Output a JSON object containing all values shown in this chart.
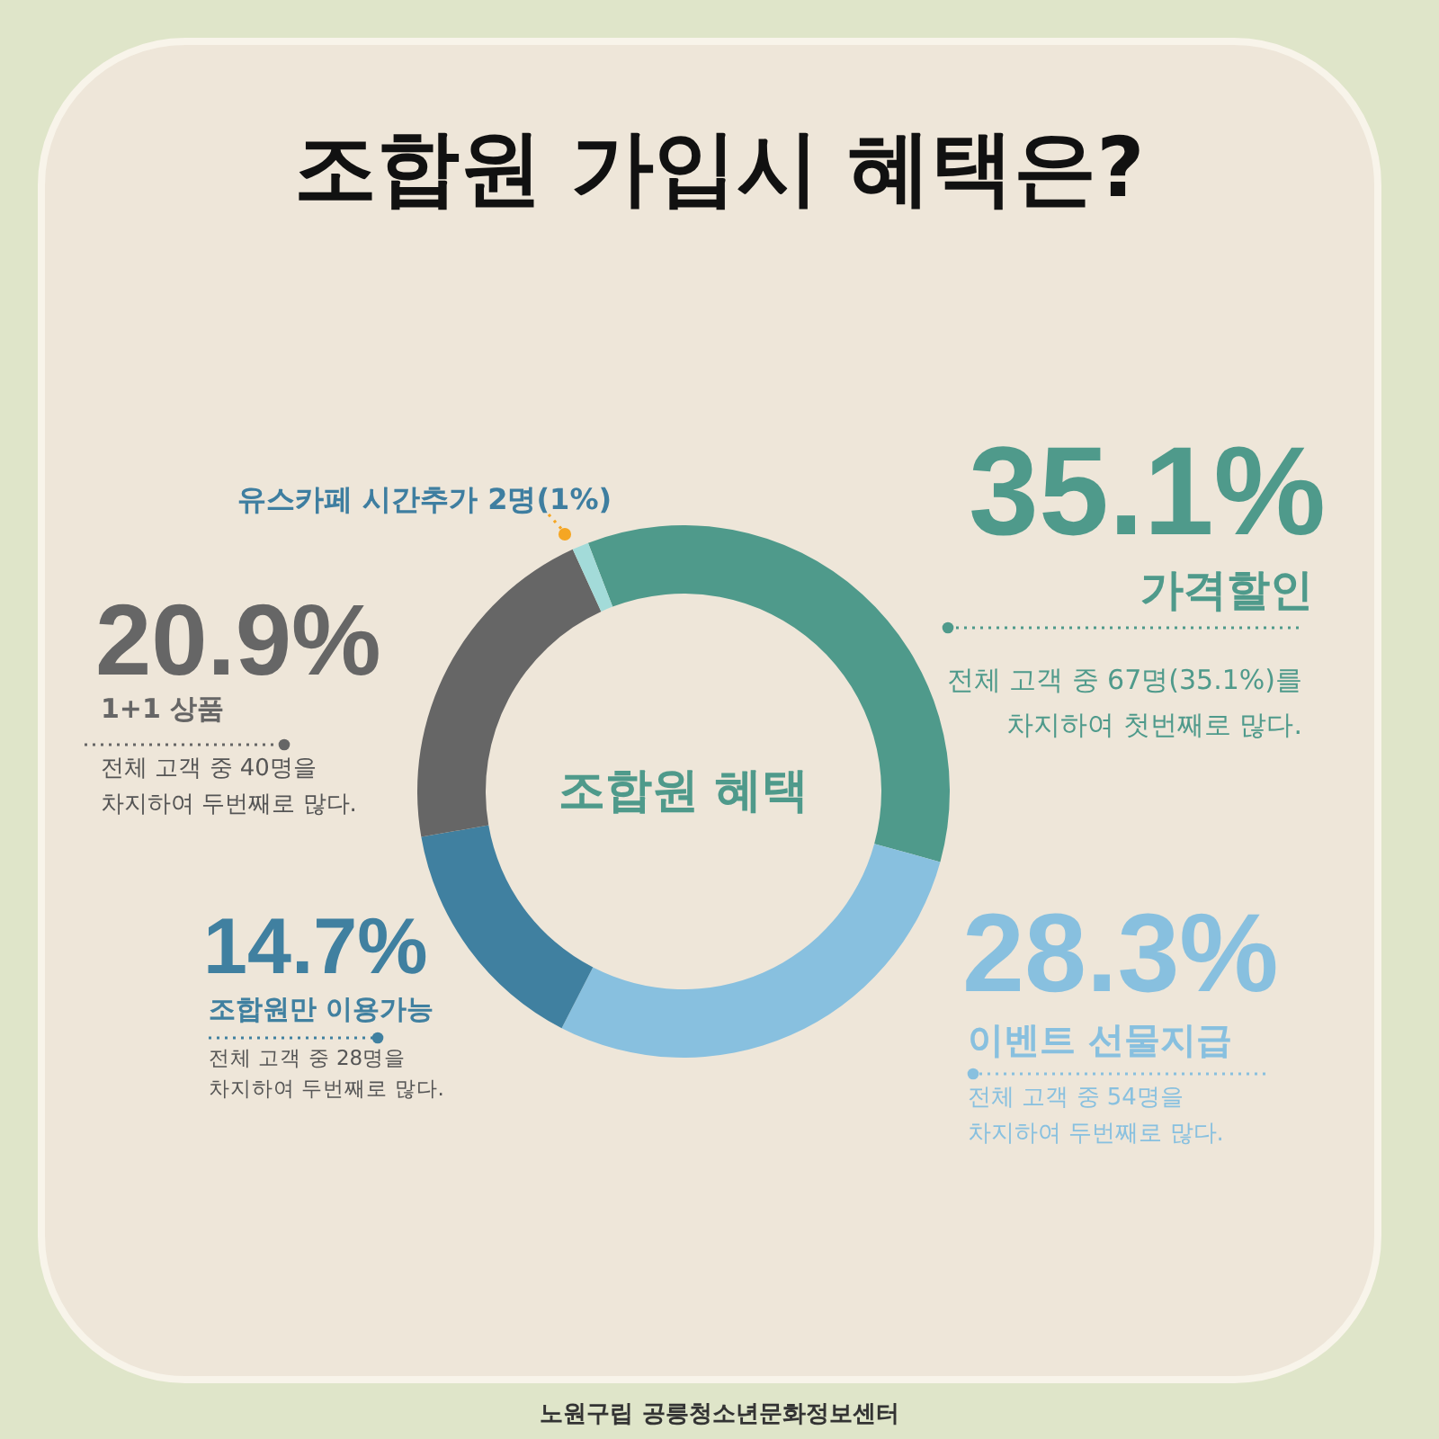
{
  "chart_data": {
    "type": "donut",
    "title": "조합원 가입시 혜택은?",
    "categories": [
      "가격할인",
      "이벤트 선물지급",
      "조합원만 이용가능",
      "1+1 상품",
      "유스카페 시간추가"
    ],
    "values": [
      35.1,
      28.3,
      14.7,
      20.9,
      1
    ],
    "colors": [
      "#4f9a8b",
      "#88c0df",
      "#4080a0",
      "#666666",
      "#a3dbd9"
    ],
    "value_labels": [
      "35.1%",
      "28.3%",
      "14.7%",
      "20.9%",
      "2명(1%)"
    ],
    "annotations": [
      "조합원 혜택",
      "전체 고객 중 67명(35.1%)를\n차지하여 첫번째로 많다.",
      "전체 고객 중 54명을\n차지하여 두번째로 많다.",
      "전체 고객 중 28명을\n차지하여 두번째로 많다.",
      "전체 고객 중 40명을\n차지하여 두번째로 많다.",
      "노원구립 공릉청소년문화정보센터"
    ]
  }
}
